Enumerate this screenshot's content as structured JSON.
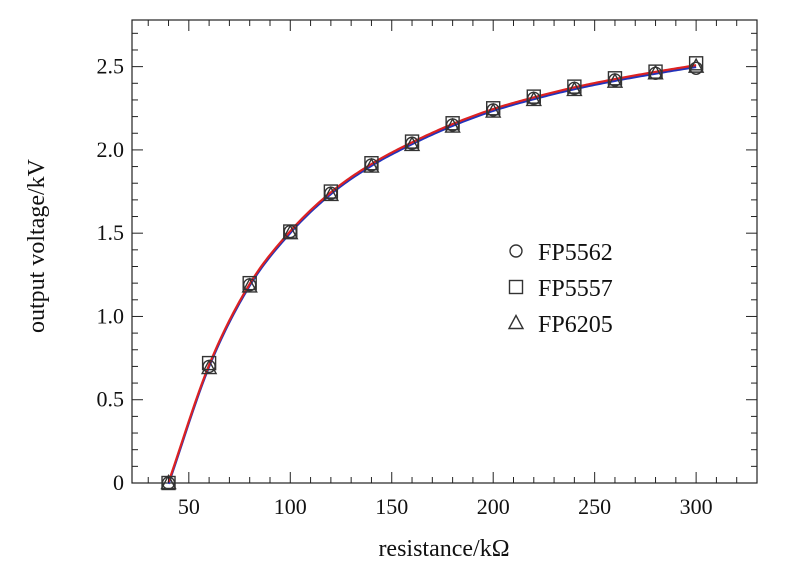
{
  "chart_data": {
    "type": "scatter",
    "title": "",
    "xlabel": "resistance/kΩ",
    "ylabel": "output voltage/kV",
    "xlim": [
      22,
      330
    ],
    "ylim": [
      0,
      2.78
    ],
    "xticks": [
      "50",
      "100",
      "150",
      "200",
      "250",
      "300"
    ],
    "yticks": [
      "0",
      "0.5",
      "1.0",
      "1.5",
      "2.0",
      "2.5"
    ],
    "grid": false,
    "legend_position": "right-middle",
    "colors": {
      "fit_red": "#dd2222",
      "fit_blue": "#2233bb",
      "marker": "#333333"
    },
    "x": [
      40,
      60,
      80,
      100,
      120,
      140,
      160,
      180,
      200,
      220,
      240,
      260,
      280,
      300
    ],
    "series": [
      {
        "name": "FP5562",
        "marker": "circle",
        "values": [
          0.0,
          0.7,
          1.19,
          1.51,
          1.74,
          1.91,
          2.04,
          2.15,
          2.24,
          2.31,
          2.37,
          2.42,
          2.46,
          2.49
        ]
      },
      {
        "name": "FP5557",
        "marker": "square",
        "values": [
          0.0,
          0.72,
          1.2,
          1.51,
          1.75,
          1.92,
          2.05,
          2.16,
          2.25,
          2.32,
          2.38,
          2.43,
          2.47,
          2.52
        ]
      },
      {
        "name": "FP6205",
        "marker": "triangle",
        "values": [
          0.0,
          0.69,
          1.18,
          1.5,
          1.73,
          1.9,
          2.03,
          2.14,
          2.23,
          2.3,
          2.36,
          2.41,
          2.46,
          2.5
        ]
      }
    ]
  }
}
